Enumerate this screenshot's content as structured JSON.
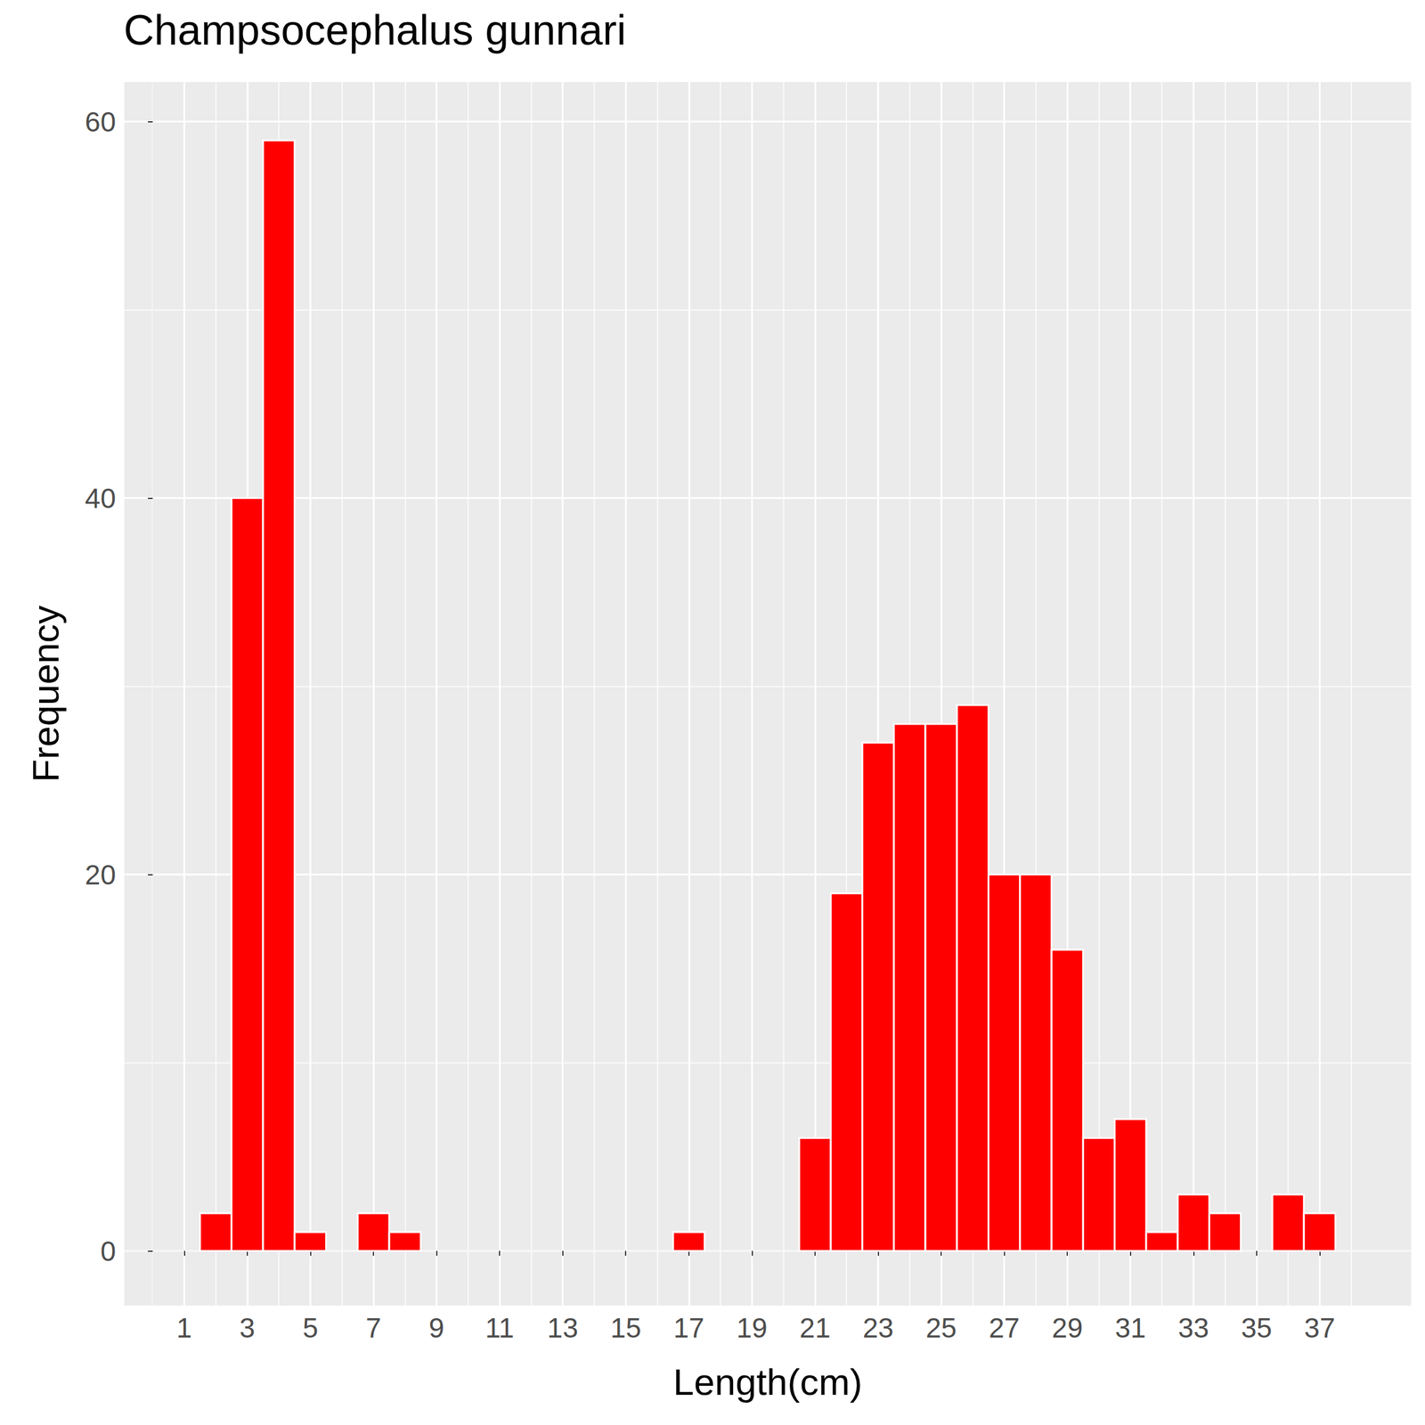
{
  "chart_data": {
    "type": "histogram",
    "title": "Champsocephalus gunnari",
    "xlabel": "Length(cm)",
    "ylabel": "Frequency",
    "bins": [
      1.5,
      2.5,
      3.5,
      4.5,
      5.5,
      6.5,
      7.5,
      8.5,
      9.5,
      10.5,
      11.5,
      12.5,
      13.5,
      14.5,
      15.5,
      16.5,
      17.5,
      18.5,
      19.5,
      20.5,
      21.5,
      22.5,
      23.5,
      24.5,
      25.5,
      26.5,
      27.5,
      28.5,
      29.5,
      30.5,
      31.5,
      32.5,
      33.5,
      34.5,
      35.5,
      36.5,
      37.5
    ],
    "counts": [
      2,
      40,
      59,
      1,
      0,
      2,
      1,
      0,
      0,
      0,
      0,
      0,
      0,
      0,
      0,
      1,
      0,
      0,
      0,
      6,
      19,
      27,
      28,
      28,
      29,
      20,
      20,
      16,
      6,
      7,
      1,
      3,
      2,
      0,
      3,
      2
    ],
    "color": "#ff0000",
    "xlim": [
      -0.9,
      39.9
    ],
    "ylim": [
      -2.9,
      62.1
    ],
    "xticks": [
      1,
      3,
      5,
      7,
      9,
      11,
      13,
      15,
      17,
      19,
      21,
      23,
      25,
      27,
      29,
      31,
      33,
      35,
      37
    ],
    "yticks": [
      0,
      20,
      40,
      60
    ],
    "grid": true
  }
}
